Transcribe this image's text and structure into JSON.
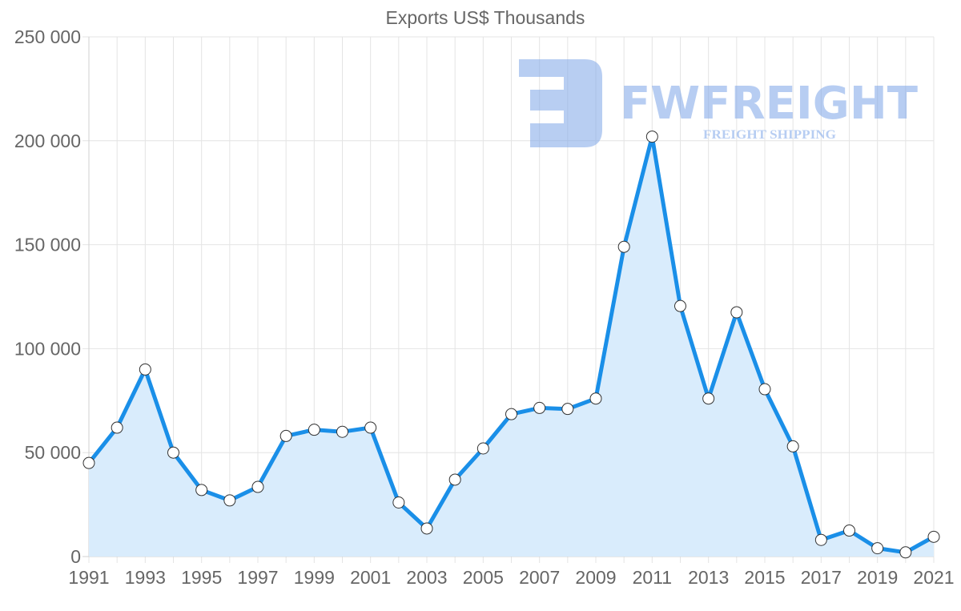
{
  "chart_data": {
    "type": "area",
    "title": "Exports US$ Thousands",
    "xlabel": "",
    "ylabel": "",
    "x": [
      1991,
      1992,
      1993,
      1994,
      1995,
      1996,
      1997,
      1998,
      1999,
      2000,
      2001,
      2002,
      2003,
      2004,
      2005,
      2006,
      2007,
      2008,
      2009,
      2010,
      2011,
      2012,
      2013,
      2014,
      2015,
      2016,
      2017,
      2018,
      2019,
      2020,
      2021
    ],
    "series": [
      {
        "name": "Exports",
        "values": [
          45000,
          62000,
          90000,
          50000,
          32000,
          27000,
          33500,
          58000,
          61000,
          60000,
          62000,
          26000,
          13500,
          37000,
          52000,
          68500,
          71500,
          71000,
          76000,
          149000,
          202000,
          120500,
          76000,
          117500,
          80500,
          53000,
          8000,
          12500,
          4000,
          2000,
          9500
        ]
      }
    ],
    "ylim": [
      0,
      250000
    ],
    "y_ticks": [
      0,
      50000,
      100000,
      150000,
      200000,
      250000
    ],
    "y_tick_labels": [
      "0",
      "50 000",
      "100 000",
      "150 000",
      "200 000",
      "250 000"
    ],
    "x_tick_labels": [
      "1991",
      "1993",
      "1995",
      "1997",
      "1999",
      "2001",
      "2003",
      "2005",
      "2007",
      "2009",
      "2011",
      "2013",
      "2015",
      "2017",
      "2019",
      "2021"
    ],
    "grid": true,
    "legend": "none",
    "colors": {
      "line": "#1a8fe8",
      "fill": "#d9ecfc",
      "marker_fill": "#ffffff",
      "marker_stroke": "#333333"
    }
  },
  "watermark": {
    "brand": "FWFREIGHT",
    "tagline": "FREIGHT SHIPPING",
    "color": "#7ea6e8"
  }
}
